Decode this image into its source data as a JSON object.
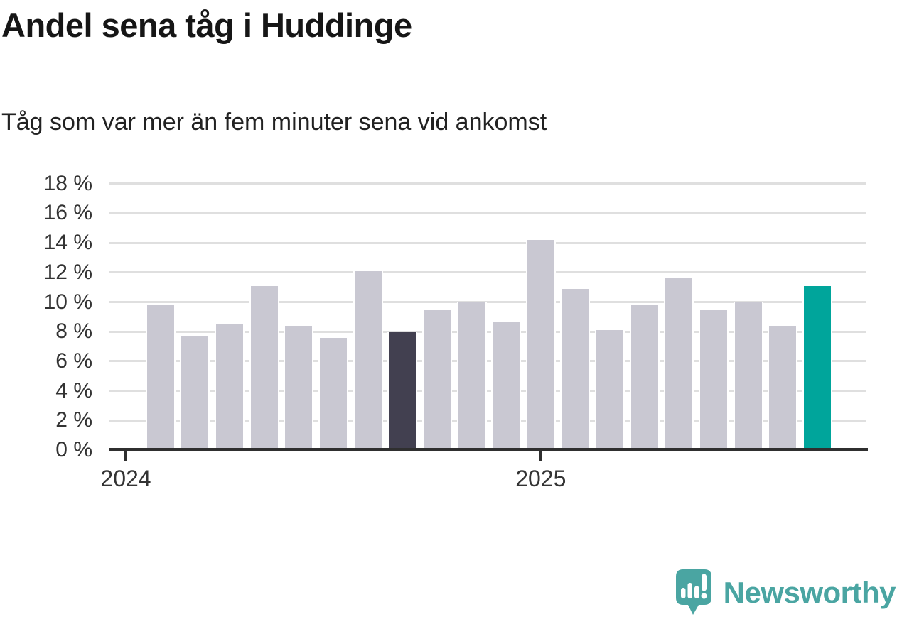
{
  "header": {
    "title": "Andel sena tåg i Huddinge",
    "subtitle": "Tåg som var mer än fem minuter sena vid ankomst"
  },
  "chart_data": {
    "type": "bar",
    "title": "Andel sena tåg i Huddinge",
    "subtitle": "Tåg som var mer än fem minuter sena vid ankomst",
    "unit": "%",
    "ylim": [
      0,
      18
    ],
    "ytick_step": 2,
    "ytick_suffix": " %",
    "grid": "horizontal",
    "legend": "none",
    "categories": [
      "2024-02",
      "2024-03",
      "2024-04",
      "2024-05",
      "2024-06",
      "2024-07",
      "2024-08",
      "2024-09",
      "2024-10",
      "2024-11",
      "2024-12",
      "2025-01",
      "2025-02",
      "2025-03",
      "2025-04",
      "2025-05",
      "2025-06",
      "2025-07",
      "2025-08",
      "2025-09"
    ],
    "values": [
      9.8,
      7.7,
      8.5,
      11.1,
      8.4,
      7.6,
      12.1,
      8.0,
      9.5,
      10.0,
      8.7,
      14.2,
      10.9,
      8.1,
      9.8,
      11.6,
      9.5,
      10.0,
      8.4,
      11.1
    ],
    "highlight_dark_index": 7,
    "highlight_accent_index": 19,
    "x_axis": {
      "first_bar_slot": 1,
      "ticks": [
        {
          "label": "2024",
          "slot": 0
        },
        {
          "label": "2025",
          "slot": 12
        }
      ]
    },
    "colors": {
      "bar_default": "#c9c8d2",
      "bar_dark": "#424050",
      "bar_accent": "#00a59b",
      "axis": "#2f2f2f",
      "gridline": "#dfdfdf",
      "tick_text": "#333333"
    }
  },
  "branding": {
    "wordmark": "Newsworthy",
    "logo_color": "#4aa5a2",
    "logo_icon": "newsworthy-speech-bubble-chart-icon"
  }
}
